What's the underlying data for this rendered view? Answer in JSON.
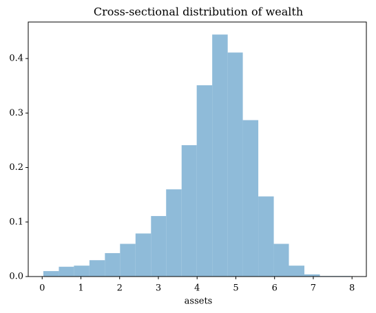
{
  "chart_data": {
    "type": "histogram",
    "title": "Cross-sectional distribution of wealth",
    "xlabel": "assets",
    "bins": [
      0.03,
      0.43,
      0.82,
      1.22,
      1.62,
      2.01,
      2.41,
      2.81,
      3.2,
      3.6,
      3.99,
      4.39,
      4.79,
      5.18,
      5.58,
      5.98,
      6.37,
      6.77,
      7.17,
      7.56,
      7.96
    ],
    "values": [
      0.01,
      0.018,
      0.02,
      0.03,
      0.043,
      0.06,
      0.079,
      0.111,
      0.16,
      0.241,
      0.351,
      0.444,
      0.411,
      0.287,
      0.147,
      0.06,
      0.02,
      0.004,
      0.001,
      0.001
    ],
    "color": "#8fbbd9",
    "xlim": [
      -0.36,
      8.37
    ],
    "xticks": [
      0,
      1,
      2,
      3,
      4,
      5,
      6,
      7,
      8
    ],
    "ylim": [
      0,
      0.467
    ],
    "yticks": [
      {
        "value": 0,
        "label": "0.0"
      },
      0.1,
      0.2,
      0.3,
      0.4
    ]
  }
}
